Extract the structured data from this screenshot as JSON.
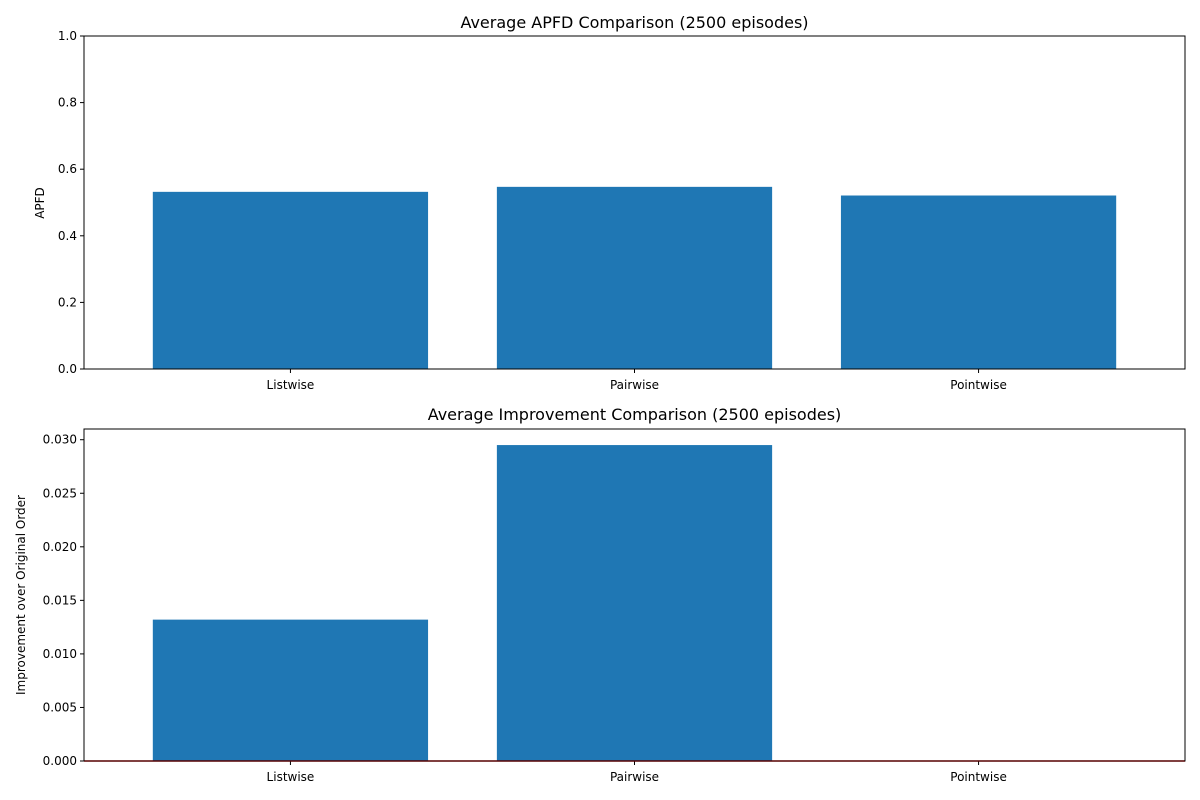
{
  "chart_data": [
    {
      "type": "bar",
      "title": "Average APFD Comparison (2500 episodes)",
      "xlabel": "",
      "ylabel": "APFD",
      "categories": [
        "Listwise",
        "Pairwise",
        "Pointwise"
      ],
      "values": [
        0.532,
        0.547,
        0.521
      ],
      "ylim": [
        0,
        1.0
      ],
      "yticks": [
        "0.0",
        "0.2",
        "0.4",
        "0.6",
        "0.8",
        "1.0"
      ],
      "ytick_values": [
        0,
        0.2,
        0.4,
        0.6,
        0.8,
        1.0
      ],
      "grid": false,
      "bar_color": "#1f77b4",
      "baseline": null
    },
    {
      "type": "bar",
      "title": "Average Improvement Comparison (2500 episodes)",
      "xlabel": "",
      "ylabel": "Improvement over Original Order",
      "categories": [
        "Listwise",
        "Pairwise",
        "Pointwise"
      ],
      "values": [
        0.0132,
        0.0295,
        0.0
      ],
      "ylim": [
        0,
        0.031
      ],
      "yticks": [
        "0.000",
        "0.005",
        "0.010",
        "0.015",
        "0.020",
        "0.025",
        "0.030"
      ],
      "ytick_values": [
        0,
        0.005,
        0.01,
        0.015,
        0.02,
        0.025,
        0.03
      ],
      "grid": false,
      "bar_color": "#1f77b4",
      "baseline": {
        "value": 0,
        "color": "#ff0000"
      }
    }
  ]
}
